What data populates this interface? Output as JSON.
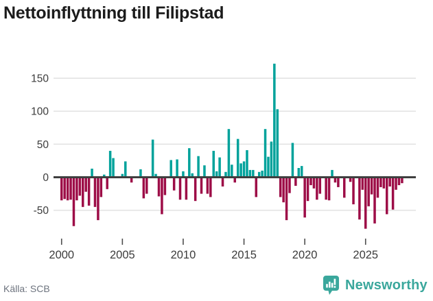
{
  "title": "Nettoinflyttning till Filipstad",
  "source": "Källa: SCB",
  "logo": {
    "text": "Newsworthy"
  },
  "colors": {
    "positive_bar": "#00a29b",
    "negative_bar": "#9d0d47",
    "grid_line": "#e3e3e3",
    "zero_line": "#3f3f3f",
    "axis_text": "#3c3c3c",
    "tick_mark": "#4d4d4d",
    "title_text": "#1b1b1b",
    "source_text": "#6d737e",
    "logo_teal": "#3aa79c"
  },
  "chart_data": {
    "type": "bar",
    "title": "Nettoinflyttning till Filipstad",
    "frequency": "quarterly",
    "start": "2000Q1",
    "y_tick_labels": [
      "150",
      "100",
      "50",
      "0",
      "-50"
    ],
    "y_ticks": [
      150,
      100,
      50,
      0,
      -50
    ],
    "ylim": [
      -90,
      185
    ],
    "grid": "horizontal",
    "legend": "none",
    "x_tick_labels": [
      "2000",
      "2005",
      "2010",
      "2015",
      "2020",
      "2025"
    ],
    "x_tick_indices": [
      0,
      20,
      40,
      60,
      80,
      100
    ],
    "values": [
      -35,
      -33,
      -35,
      -34,
      -74,
      -35,
      -28,
      -45,
      -22,
      -43,
      13,
      -45,
      -65,
      -30,
      4,
      -18,
      40,
      29,
      0,
      0,
      5,
      24,
      0,
      -8,
      0,
      0,
      12,
      -32,
      -25,
      0,
      57,
      5,
      -29,
      -56,
      -27,
      0,
      26,
      -20,
      27,
      -34,
      9,
      -34,
      44,
      6,
      -36,
      32,
      -25,
      18,
      -25,
      -30,
      40,
      9,
      30,
      -14,
      8,
      73,
      19,
      -8,
      58,
      21,
      24,
      41,
      11,
      11,
      -30,
      8,
      10,
      73,
      31,
      54,
      172,
      103,
      -30,
      -38,
      -65,
      -24,
      52,
      -13,
      14,
      17,
      -61,
      -36,
      -12,
      -17,
      -34,
      -25,
      0,
      -34,
      -35,
      11,
      -8,
      -15,
      0,
      -31,
      0,
      -7,
      -41,
      0,
      -64,
      -19,
      -78,
      -44,
      -26,
      -70,
      -31,
      -15,
      -17,
      -56,
      -14,
      -49,
      -19,
      -12,
      -9
    ]
  }
}
